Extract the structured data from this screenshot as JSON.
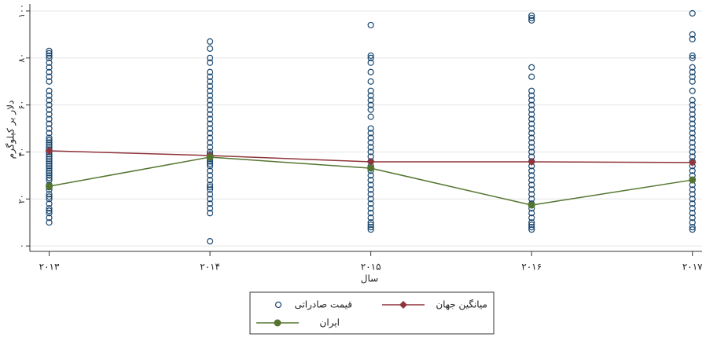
{
  "chart_data": {
    "type": "scatter",
    "y_label": "دلار بر کیلوگرم",
    "x_label": "سال",
    "xlim": [
      2012.88,
      2017.06
    ],
    "xticks": [
      {
        "value": 2013,
        "label": "۲۰۱۳"
      },
      {
        "value": 2014,
        "label": "۲۰۱۴"
      },
      {
        "value": 2015,
        "label": "۲۰۱۵"
      },
      {
        "value": 2016,
        "label": "۲۰۱۶"
      },
      {
        "value": 2017,
        "label": "۲۰۱۷"
      }
    ],
    "ylim": [
      -2.3,
      103
    ],
    "yticks": [
      {
        "value": 0,
        "label": "۰"
      },
      {
        "value": 20,
        "label": "۲۰"
      },
      {
        "value": 40,
        "label": "۴۰"
      },
      {
        "value": 60,
        "label": "۶۰"
      },
      {
        "value": 80,
        "label": "۸۰"
      },
      {
        "value": 100,
        "label": "۱۰۰"
      }
    ],
    "grid": true,
    "legend": "bottom",
    "series": [
      {
        "name": "قیمت صادراتی",
        "type": "scatter",
        "color": "#1a476f",
        "x": [
          2013,
          2013,
          2013,
          2013,
          2013,
          2013,
          2013,
          2013,
          2013,
          2013,
          2013,
          2013,
          2013,
          2013,
          2013,
          2013,
          2013,
          2013,
          2013,
          2013,
          2013,
          2013,
          2013,
          2013,
          2013,
          2013,
          2013,
          2013,
          2013,
          2013,
          2013,
          2013,
          2013,
          2013,
          2013,
          2013,
          2013,
          2013,
          2013,
          2013,
          2013,
          2013,
          2013,
          2013,
          2013,
          2013,
          2013,
          2013,
          2013,
          2013,
          2014,
          2014,
          2014,
          2014,
          2014,
          2014,
          2014,
          2014,
          2014,
          2014,
          2014,
          2014,
          2014,
          2014,
          2014,
          2014,
          2014,
          2014,
          2014,
          2014,
          2014,
          2014,
          2014,
          2014,
          2014,
          2014,
          2014,
          2014,
          2014,
          2014,
          2014,
          2014,
          2014,
          2014,
          2014,
          2014,
          2014,
          2014,
          2014,
          2014,
          2015,
          2015,
          2015,
          2015,
          2015,
          2015,
          2015,
          2015,
          2015,
          2015,
          2015,
          2015,
          2015,
          2015,
          2015,
          2015,
          2015,
          2015,
          2015,
          2015,
          2015,
          2015,
          2015,
          2015,
          2015,
          2015,
          2015,
          2015,
          2015,
          2015,
          2015,
          2015,
          2015,
          2015,
          2015,
          2015,
          2016,
          2016,
          2016,
          2016,
          2016,
          2016,
          2016,
          2016,
          2016,
          2016,
          2016,
          2016,
          2016,
          2016,
          2016,
          2016,
          2016,
          2016,
          2016,
          2016,
          2016,
          2016,
          2016,
          2016,
          2016,
          2016,
          2016,
          2016,
          2016,
          2016,
          2016,
          2016,
          2016,
          2016,
          2016,
          2016,
          2016,
          2017,
          2017,
          2017,
          2017,
          2017,
          2017,
          2017,
          2017,
          2017,
          2017,
          2017,
          2017,
          2017,
          2017,
          2017,
          2017,
          2017,
          2017,
          2017,
          2017,
          2017,
          2017,
          2017,
          2017,
          2017,
          2017,
          2017,
          2017,
          2017,
          2017,
          2017,
          2017,
          2017,
          2017,
          2017,
          2017,
          2017,
          2017,
          2017
        ],
        "values": [
          10,
          12,
          14,
          15,
          16,
          18,
          20,
          21,
          22,
          24,
          25,
          26,
          28,
          29,
          30,
          31,
          32,
          33,
          34,
          35,
          36,
          37,
          38,
          39,
          40,
          41,
          42,
          43,
          44,
          45,
          46,
          48,
          50,
          52,
          54,
          56,
          58,
          60,
          62,
          64,
          66,
          70,
          72,
          74,
          76,
          78,
          80,
          81,
          82,
          83,
          2,
          14,
          16,
          18,
          20,
          22,
          24,
          25,
          26,
          28,
          30,
          32,
          34,
          35,
          36,
          37,
          38,
          39,
          40,
          42,
          44,
          46,
          48,
          50,
          52,
          54,
          56,
          58,
          60,
          62,
          64,
          66,
          68,
          70,
          72,
          74,
          78,
          80,
          84,
          87,
          7,
          8,
          9,
          10,
          12,
          14,
          16,
          18,
          20,
          22,
          24,
          26,
          28,
          30,
          32,
          34,
          36,
          38,
          40,
          42,
          44,
          46,
          48,
          50,
          55,
          58,
          60,
          62,
          64,
          66,
          70,
          74,
          78,
          80,
          81,
          94,
          7,
          8,
          9,
          10,
          12,
          14,
          16,
          18,
          20,
          22,
          24,
          26,
          28,
          30,
          32,
          34,
          36,
          38,
          40,
          42,
          44,
          46,
          48,
          50,
          52,
          54,
          56,
          58,
          60,
          62,
          64,
          66,
          72,
          76,
          96,
          97,
          98,
          7,
          8,
          10,
          12,
          14,
          16,
          18,
          20,
          22,
          24,
          26,
          28,
          30,
          32,
          34,
          36,
          38,
          40,
          42,
          44,
          46,
          48,
          50,
          52,
          54,
          56,
          58,
          60,
          62,
          66,
          70,
          72,
          74,
          76,
          80,
          81,
          88,
          90,
          99
        ]
      },
      {
        "name": "میانگین جهان",
        "type": "line",
        "marker": "diamond",
        "color": "#90353b",
        "x": [
          2013,
          2014,
          2015,
          2016,
          2017
        ],
        "values": [
          40.5,
          38.5,
          35.8,
          35.8,
          35.5
        ]
      },
      {
        "name": "ایران",
        "type": "line",
        "marker": "circle",
        "color": "#55752f",
        "x": [
          2013,
          2014,
          2015,
          2016,
          2017
        ],
        "values": [
          25.4,
          37.8,
          33.1,
          17.4,
          28.1
        ]
      }
    ]
  }
}
